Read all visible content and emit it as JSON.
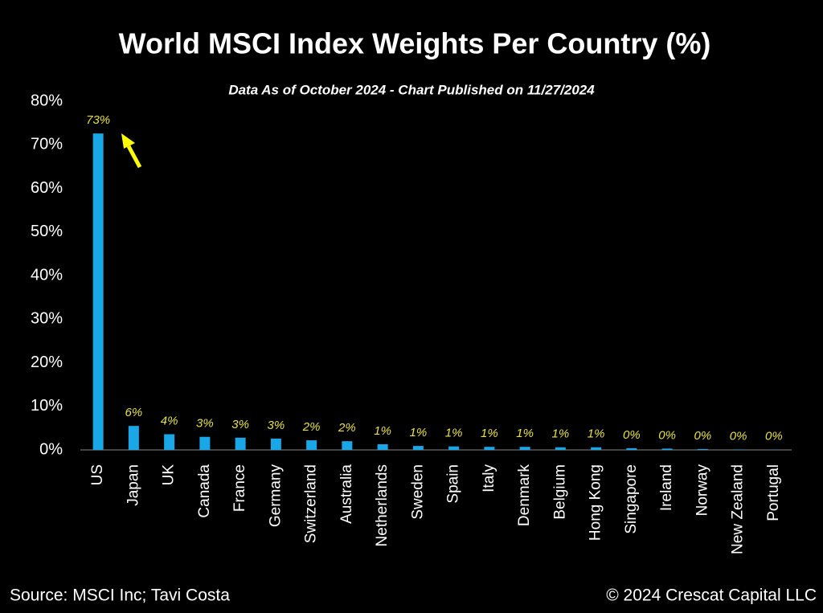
{
  "chart_data": {
    "type": "bar",
    "title": "World MSCI Index Weights Per Country (%)",
    "subtitle": "Data As of October 2024 - Chart Published on 11/27/2024",
    "source": "Source: MSCI Inc; Tavi Costa",
    "copyright": "© 2024 Crescat Capital LLC",
    "categories": [
      "US",
      "Japan",
      "UK",
      "Canada",
      "France",
      "Germany",
      "Switzerland",
      "Australia",
      "Netherlands",
      "Sweden",
      "Spain",
      "Italy",
      "Denmark",
      "Belgium",
      "Hong Kong",
      "Singapore",
      "Ireland",
      "Norway",
      "New Zealand",
      "Portugal"
    ],
    "values": [
      72.6,
      5.5,
      3.6,
      3.0,
      2.8,
      2.6,
      2.2,
      2.0,
      1.3,
      0.9,
      0.8,
      0.7,
      0.7,
      0.6,
      0.6,
      0.4,
      0.3,
      0.2,
      0.1,
      0.05
    ],
    "value_labels": [
      "73%",
      "6%",
      "4%",
      "3%",
      "3%",
      "3%",
      "2%",
      "2%",
      "1%",
      "1%",
      "1%",
      "1%",
      "1%",
      "1%",
      "1%",
      "0%",
      "0%",
      "0%",
      "0%",
      "0%"
    ],
    "color": "#1aa7e8",
    "label_color": "#e8e04a",
    "ylim": [
      0,
      80
    ],
    "yticks": [
      {
        "value": 0,
        "label": "0%"
      },
      {
        "value": 10,
        "label": "10%"
      },
      {
        "value": 20,
        "label": "20%"
      },
      {
        "value": 30,
        "label": "30%"
      },
      {
        "value": 40,
        "label": "40%"
      },
      {
        "value": 50,
        "label": "50%"
      },
      {
        "value": 60,
        "label": "60%"
      },
      {
        "value": 70,
        "label": "70%"
      },
      {
        "value": 80,
        "label": "80%"
      }
    ],
    "grid": false
  }
}
